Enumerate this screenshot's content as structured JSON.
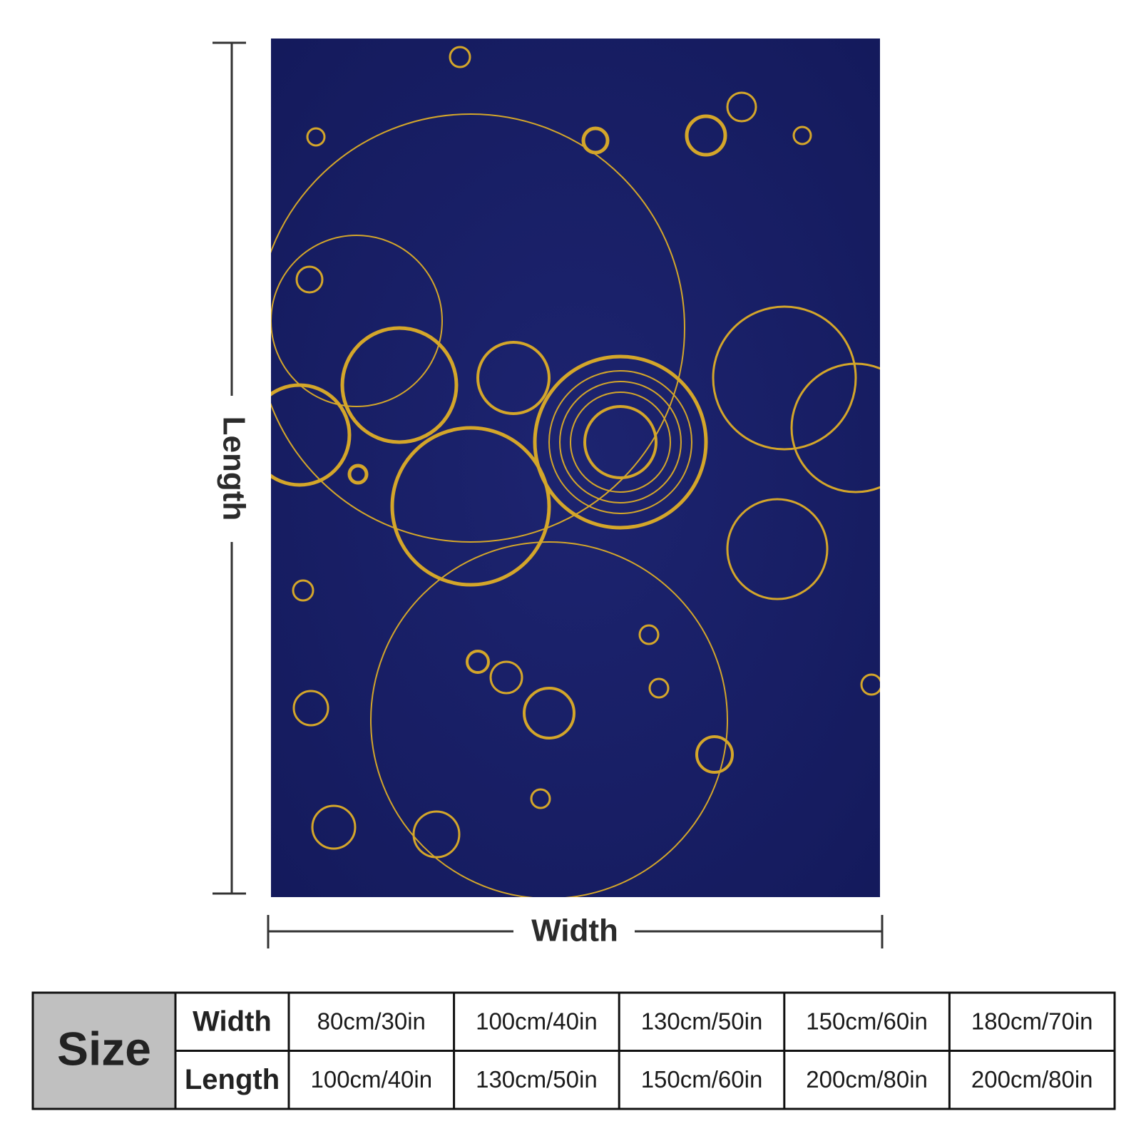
{
  "dimensions": {
    "length": "Length",
    "width": "Width"
  },
  "table": {
    "corner": "Size",
    "rows": [
      [
        "Width",
        "80cm/30in",
        "100cm/40in",
        "130cm/50in",
        "150cm/60in",
        "180cm/70in"
      ],
      [
        "Length",
        "100cm/40in",
        "130cm/50in",
        "150cm/60in",
        "200cm/80in",
        "200cm/80in"
      ]
    ]
  }
}
